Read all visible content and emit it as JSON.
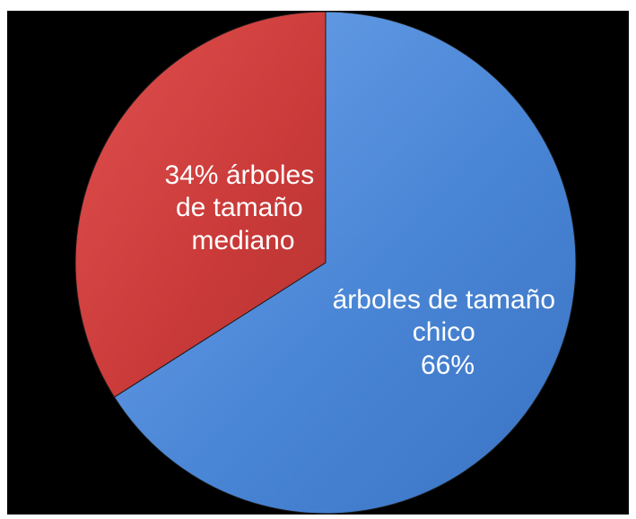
{
  "chart_data": {
    "type": "pie",
    "title": "",
    "slices": [
      {
        "category": "árboles de tamaño chico",
        "value": 66,
        "label_lines": [
          "árboles de tamaño",
          "chico",
          "66%"
        ],
        "color": "#4a86d6"
      },
      {
        "category": "árboles de tamaño mediano",
        "value": 34,
        "label_lines": [
          "34% árboles",
          "de tamaño",
          "mediano"
        ],
        "color": "#d13f3e"
      }
    ],
    "legend": "none",
    "start_angle": "12 o'clock, clockwise",
    "background": "#000000"
  }
}
